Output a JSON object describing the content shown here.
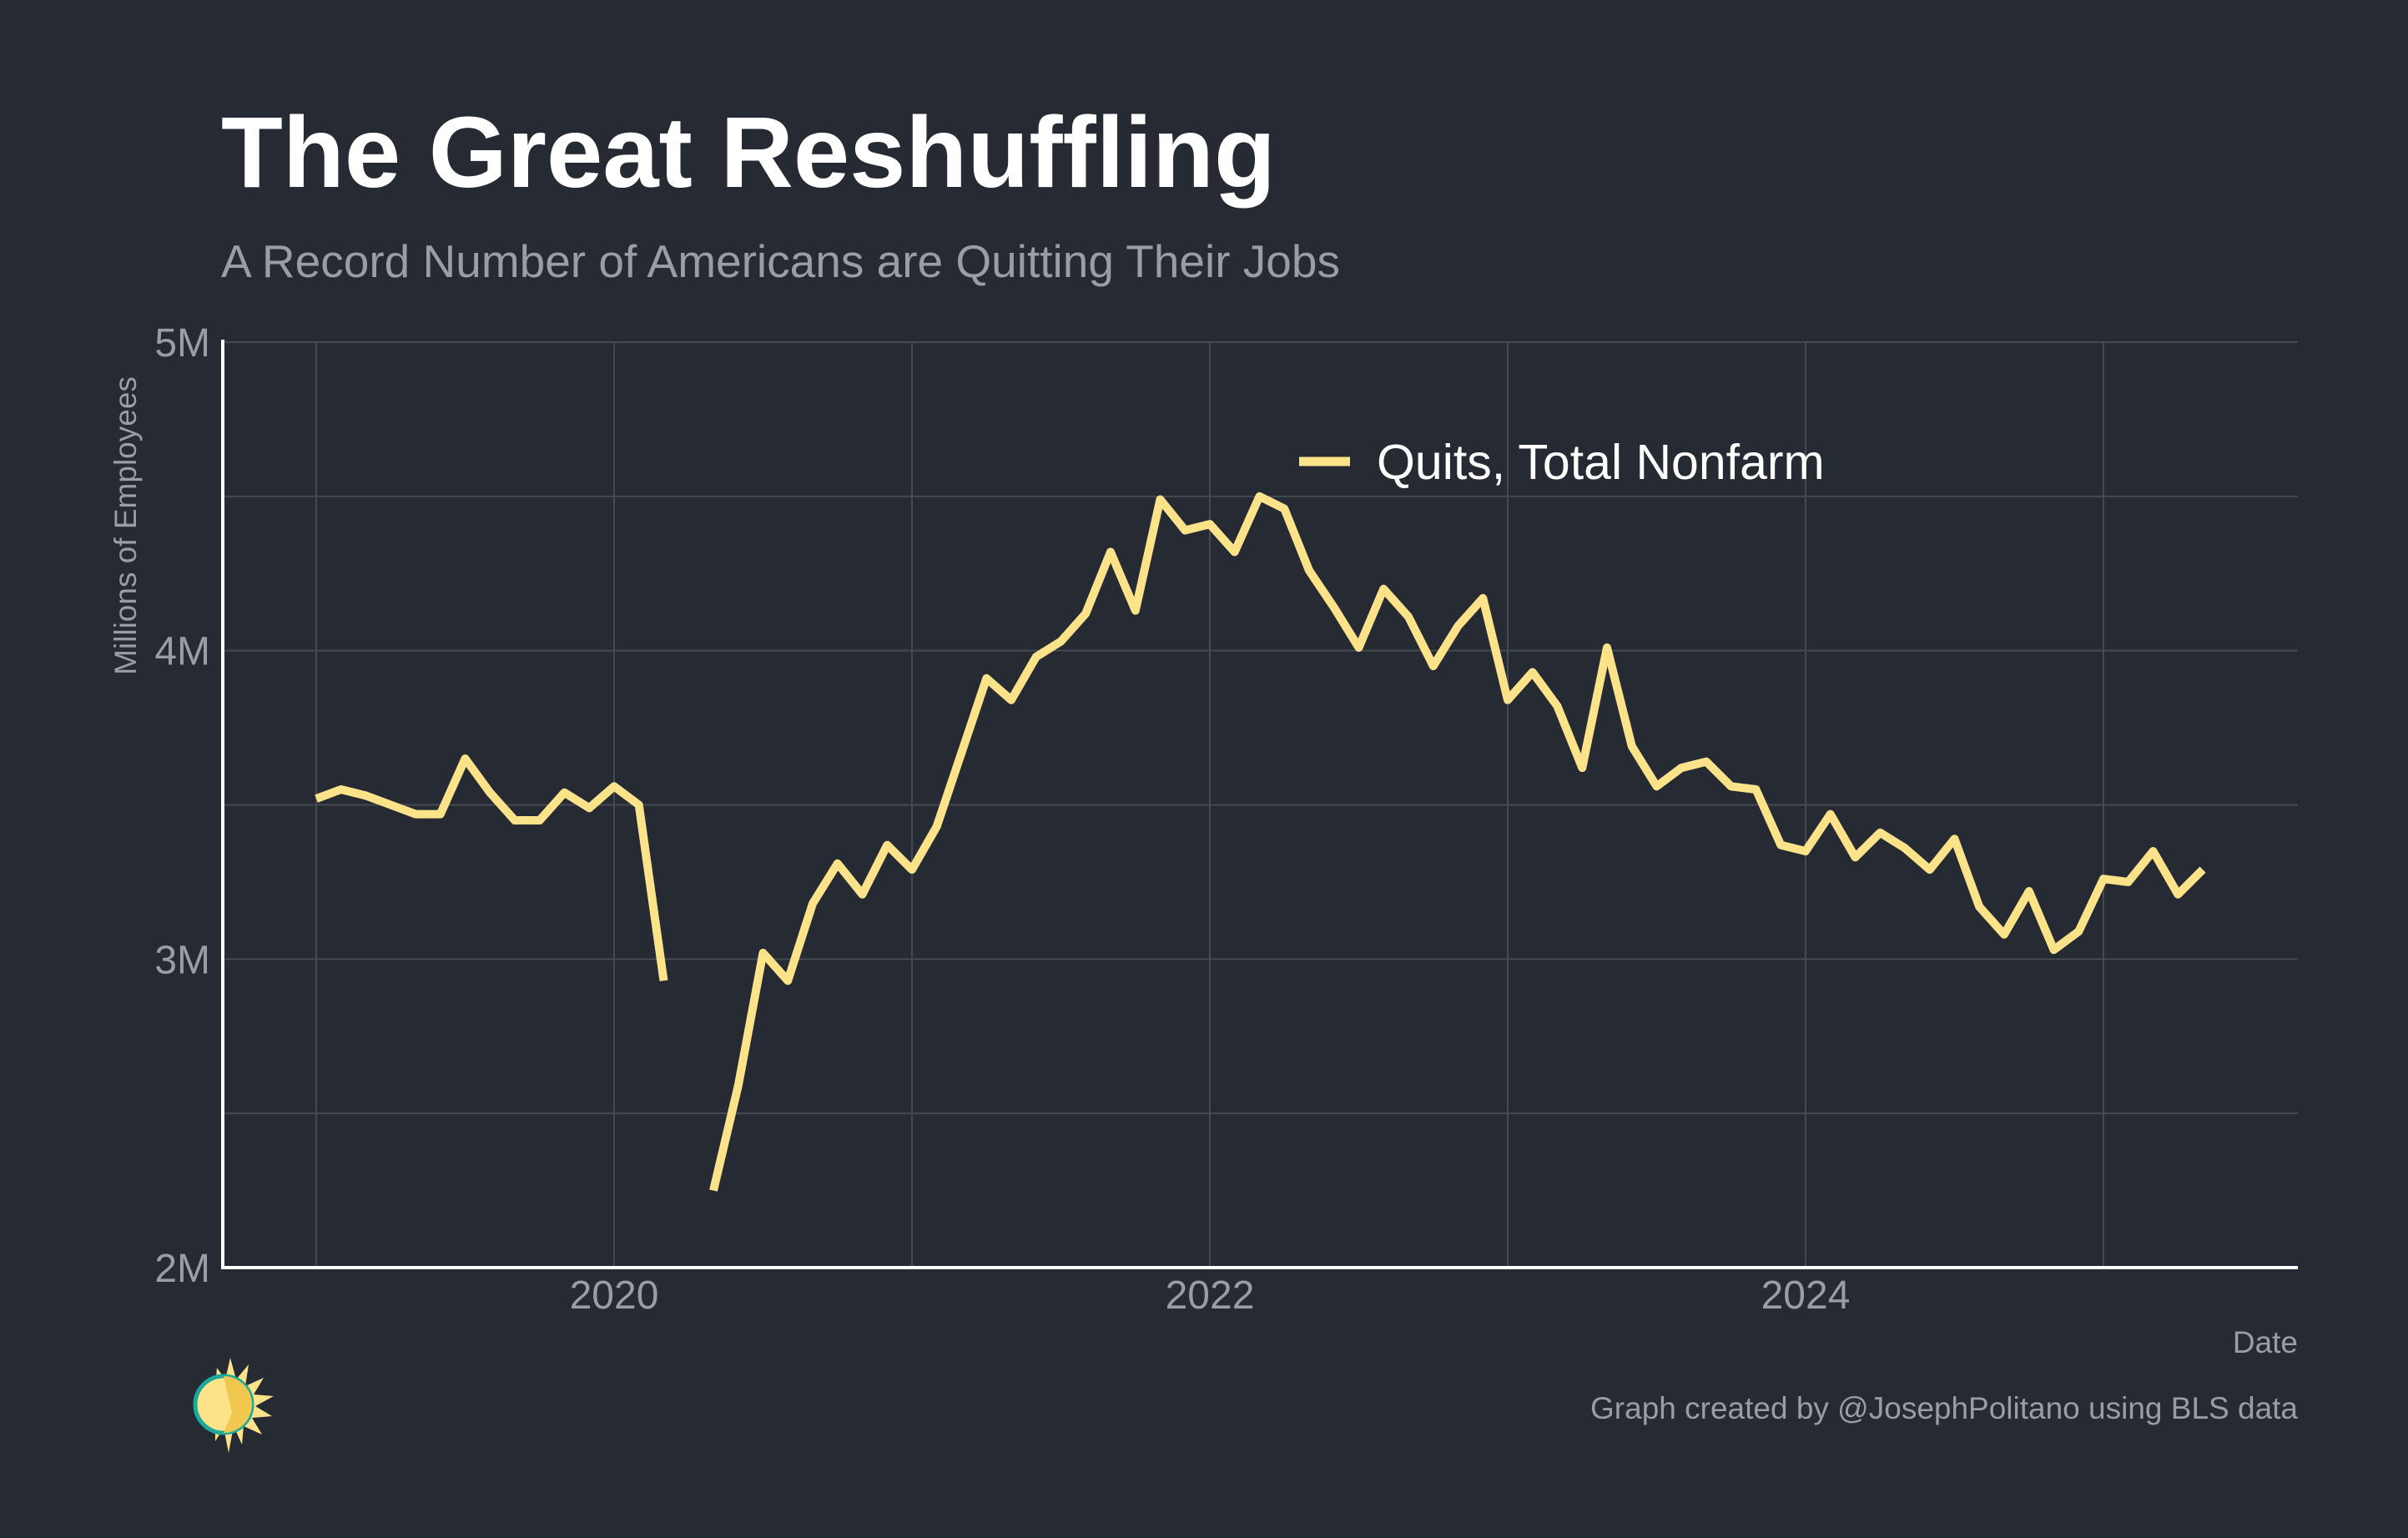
{
  "chart_data": {
    "type": "line",
    "title": "The Great Reshuffling",
    "subtitle": "A Record Number of Americans are Quitting Their Jobs",
    "xlabel": "Date",
    "ylabel": "Millions of Employees",
    "y_ticks": [
      "2M",
      "3M",
      "4M",
      "5M"
    ],
    "x_ticks": [
      "2020",
      "2022",
      "2024"
    ],
    "ylim": [
      2.0,
      5.0
    ],
    "grid": true,
    "legend_position": "top-center",
    "series": [
      {
        "name": "Quits, Total Nonfarm",
        "color": "#fce38a",
        "points": [
          [
            "2019-01",
            3.52
          ],
          [
            "2019-02",
            3.55
          ],
          [
            "2019-03",
            3.53
          ],
          [
            "2019-04",
            3.5
          ],
          [
            "2019-05",
            3.47
          ],
          [
            "2019-06",
            3.47
          ],
          [
            "2019-07",
            3.65
          ],
          [
            "2019-08",
            3.54
          ],
          [
            "2019-09",
            3.45
          ],
          [
            "2019-10",
            3.45
          ],
          [
            "2019-11",
            3.54
          ],
          [
            "2019-12",
            3.49
          ],
          [
            "2020-01",
            3.56
          ],
          [
            "2020-02",
            3.5
          ],
          [
            "2020-03",
            2.93
          ],
          [
            "2020-04",
            null
          ],
          [
            "2020-05",
            2.25
          ],
          [
            "2020-06",
            2.59
          ],
          [
            "2020-07",
            3.02
          ],
          [
            "2020-08",
            2.93
          ],
          [
            "2020-09",
            3.18
          ],
          [
            "2020-10",
            3.31
          ],
          [
            "2020-11",
            3.21
          ],
          [
            "2020-12",
            3.37
          ],
          [
            "2021-01",
            3.29
          ],
          [
            "2021-02",
            3.43
          ],
          [
            "2021-03",
            3.67
          ],
          [
            "2021-04",
            3.91
          ],
          [
            "2021-05",
            3.84
          ],
          [
            "2021-06",
            3.98
          ],
          [
            "2021-07",
            4.03
          ],
          [
            "2021-08",
            4.12
          ],
          [
            "2021-09",
            4.32
          ],
          [
            "2021-10",
            4.13
          ],
          [
            "2021-11",
            4.49
          ],
          [
            "2021-12",
            4.39
          ],
          [
            "2022-01",
            4.41
          ],
          [
            "2022-02",
            4.32
          ],
          [
            "2022-03",
            4.5
          ],
          [
            "2022-04",
            4.46
          ],
          [
            "2022-05",
            4.26
          ],
          [
            "2022-06",
            4.14
          ],
          [
            "2022-07",
            4.01
          ],
          [
            "2022-08",
            4.2
          ],
          [
            "2022-09",
            4.11
          ],
          [
            "2022-10",
            3.95
          ],
          [
            "2022-11",
            4.08
          ],
          [
            "2022-12",
            4.17
          ],
          [
            "2023-01",
            3.84
          ],
          [
            "2023-02",
            3.93
          ],
          [
            "2023-03",
            3.82
          ],
          [
            "2023-04",
            3.62
          ],
          [
            "2023-05",
            4.01
          ],
          [
            "2023-06",
            3.69
          ],
          [
            "2023-07",
            3.56
          ],
          [
            "2023-08",
            3.62
          ],
          [
            "2023-09",
            3.64
          ],
          [
            "2023-10",
            3.56
          ],
          [
            "2023-11",
            3.55
          ],
          [
            "2023-12",
            3.37
          ],
          [
            "2024-01",
            3.35
          ],
          [
            "2024-02",
            3.47
          ],
          [
            "2024-03",
            3.33
          ],
          [
            "2024-04",
            3.41
          ],
          [
            "2024-05",
            3.36
          ],
          [
            "2024-06",
            3.29
          ],
          [
            "2024-07",
            3.39
          ],
          [
            "2024-08",
            3.17
          ],
          [
            "2024-09",
            3.08
          ],
          [
            "2024-10",
            3.22
          ],
          [
            "2024-11",
            3.03
          ],
          [
            "2024-12",
            3.09
          ],
          [
            "2025-01",
            3.26
          ],
          [
            "2025-02",
            3.25
          ],
          [
            "2025-03",
            3.35
          ],
          [
            "2025-04",
            3.21
          ],
          [
            "2025-05",
            3.29
          ]
        ]
      }
    ]
  },
  "credit": "Graph created by @JosephPolitano using BLS data",
  "colors": {
    "background": "#252a33",
    "line": "#fce38a",
    "grid": "#454a52",
    "axis": "#ffffff"
  },
  "logo": {
    "icon": "sun-logo-icon"
  }
}
